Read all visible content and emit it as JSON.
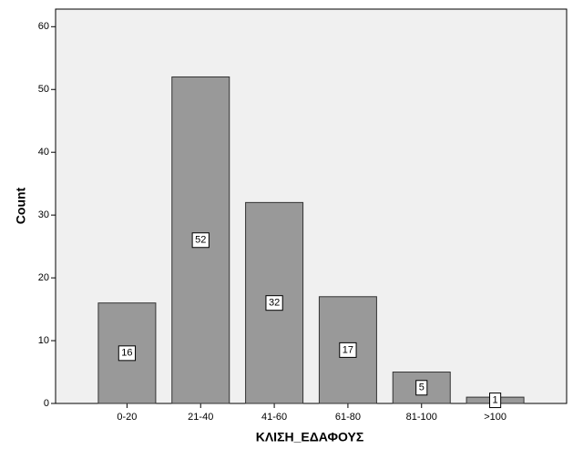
{
  "chart_data": {
    "type": "bar",
    "x_label": "ΚΛΙΣΗ_ΕΔΑΦΟΥΣ",
    "y_label": "Count",
    "categories": [
      "0-20",
      "21-40",
      "41-60",
      "61-80",
      "81-100",
      ">100"
    ],
    "values": [
      16,
      52,
      32,
      17,
      5,
      1
    ],
    "color": "#999999",
    "ylim": [
      0,
      62.8
    ],
    "yticks": [
      0,
      10,
      20,
      30,
      40,
      50,
      60
    ]
  }
}
